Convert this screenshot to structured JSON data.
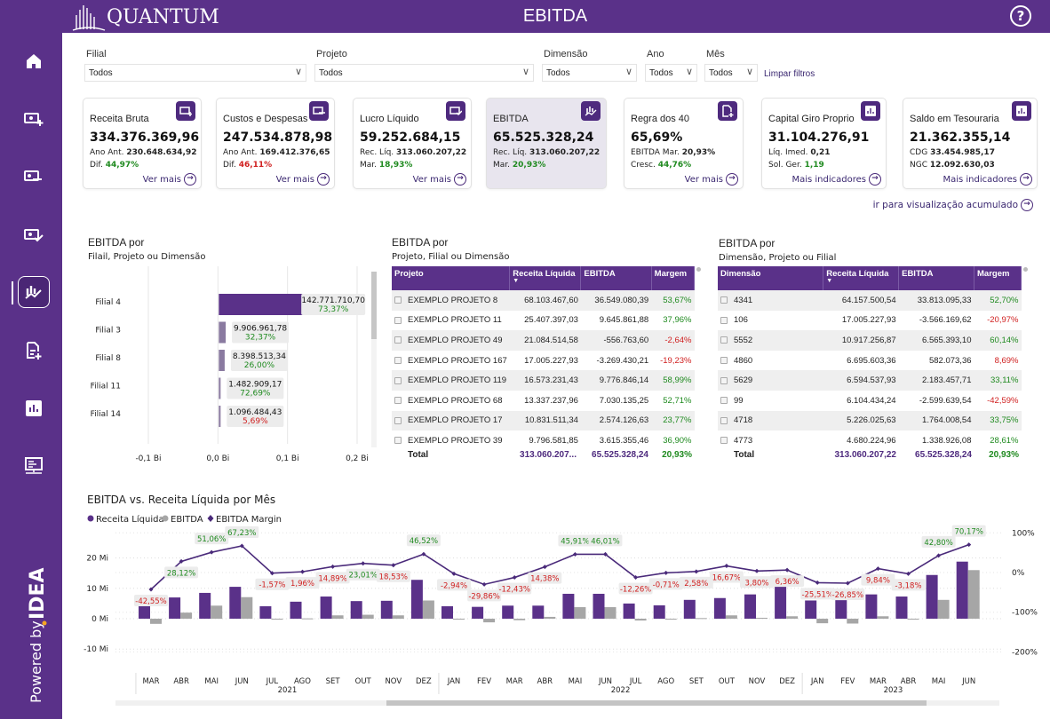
{
  "header": {
    "logo_text": "QUANTUM",
    "title": "EBITDA",
    "help": "?"
  },
  "sidebar": {
    "items": [
      "home",
      "money-plus",
      "money-minus",
      "money-check",
      "ebitda-chart",
      "document-plus",
      "bar-chart",
      "monitor"
    ],
    "active": "ebitda-chart",
    "powered_by": "Powered by",
    "brand": "IDEA"
  },
  "colors": {
    "brand": "#5a3189",
    "positive": "#1f8a1f",
    "negative": "#d02020",
    "ebitda_bar": "#a6a6a6",
    "active_card": "#e8e5ee"
  },
  "filters": [
    {
      "label": "Filial",
      "value": "Todos"
    },
    {
      "label": "Projeto",
      "value": "Todos"
    },
    {
      "label": "Dimensão",
      "value": "Todos"
    },
    {
      "label": "Ano",
      "value": "Todos"
    },
    {
      "label": "Mês",
      "value": "Todos"
    }
  ],
  "clear_filters": "Limpar filtros",
  "cards": [
    {
      "title": "Receita Bruta",
      "value": "334.376.369,96",
      "l1": "Ano Ant.",
      "v1": "230.648.634,92",
      "l2": "Dif.",
      "v2": "44,97%",
      "v2s": "pos",
      "link": "Ver mais",
      "icon": "money-plus-icon"
    },
    {
      "title": "Custos e Despesas",
      "value": "247.534.878,98",
      "l1": "Ano Ant.",
      "v1": "169.412.376,65",
      "l2": "Dif.",
      "v2": "46,11%",
      "v2s": "neg",
      "link": "Ver mais",
      "icon": "money-minus-icon"
    },
    {
      "title": "Lucro Líquido",
      "value": "59.252.684,15",
      "l1": "Rec. Líq.",
      "v1": "313.060.207,22",
      "l2": "Mar.",
      "v2": "18,93%",
      "v2s": "pos",
      "link": "Ver mais",
      "icon": "money-check-icon"
    },
    {
      "title": "EBITDA",
      "value": "65.525.328,24",
      "l1": "Rec. Líq.",
      "v1": "313.060.207,22",
      "l2": "Mar.",
      "v2": "20,93%",
      "v2s": "pos",
      "link": "",
      "icon": "ebitda-chart-icon"
    },
    {
      "title": "Regra dos 40",
      "value": "65,69%",
      "l1": "EBITDA Mar.",
      "v1": "20,93%",
      "l2": "Cresc.",
      "v2": "44,76%",
      "v2s": "pos",
      "link": "Ver mais",
      "icon": "document-plus-icon"
    },
    {
      "title": "Capital Giro Proprio",
      "value": "31.104.276,91",
      "l1": "Líq. Imed.",
      "v1": "0,21",
      "l2": "Sol. Ger.",
      "v2": "1,19",
      "v2s": "pos",
      "link": "Mais indicadores",
      "icon": "bar-chart-icon"
    },
    {
      "title": "Saldo em Tesouraria",
      "value": "21.362.355,14",
      "l1": "CDG",
      "v1": "33.454.985,17",
      "l2": "NGC",
      "v2": "12.092.630,03",
      "v2s": "",
      "link": "Mais indicadores",
      "icon": "bar-chart-icon"
    }
  ],
  "acumulado_link": "ir para visualização acumulado",
  "filial_section": {
    "title": "EBITDA por",
    "subtitle": "Filail, Projeto ou Dimensão"
  },
  "projeto_section": {
    "title": "EBITDA por",
    "subtitle": "Projeto, Filial ou Dimensão",
    "columns": [
      "Projeto",
      "Receita Líquida",
      "EBITDA",
      "Margem"
    ],
    "rows": [
      [
        "EXEMPLO PROJETO 8",
        "68.103.467,60",
        "36.549.080,39",
        "53,67%"
      ],
      [
        "EXEMPLO PROJETO 11",
        "25.407.397,03",
        "9.645.861,88",
        "37,96%"
      ],
      [
        "EXEMPLO PROJETO 49",
        "21.084.514,58",
        "-556.763,60",
        "-2,64%"
      ],
      [
        "EXEMPLO PROJETO 167",
        "17.005.227,93",
        "-3.269.430,21",
        "-19,23%"
      ],
      [
        "EXEMPLO PROJETO 119",
        "16.573.231,43",
        "9.776.846,14",
        "58,99%"
      ],
      [
        "EXEMPLO PROJETO 68",
        "13.337.237,96",
        "7.030.135,25",
        "52,71%"
      ],
      [
        "EXEMPLO PROJETO 17",
        "10.831.511,34",
        "2.574.126,63",
        "23,77%"
      ],
      [
        "EXEMPLO PROJETO 39",
        "9.796.581,85",
        "3.615.355,46",
        "36,90%"
      ]
    ],
    "total": [
      "Total",
      "313.060.207...",
      "65.525.328,24",
      "20,93%"
    ]
  },
  "dimensao_section": {
    "title": "EBITDA por",
    "subtitle": "Dimensão, Projeto ou Filial",
    "columns": [
      "Dimensão",
      "Receita Líquida",
      "EBITDA",
      "Margem"
    ],
    "rows": [
      [
        "4341",
        "64.157.500,54",
        "33.813.095,33",
        "52,70%"
      ],
      [
        "106",
        "17.005.227,93",
        "-3.566.169,62",
        "-20,97%"
      ],
      [
        "5552",
        "10.917.256,87",
        "6.565.393,10",
        "60,14%"
      ],
      [
        "4860",
        "6.695.603,36",
        "582.073,36",
        "8,69%"
      ],
      [
        "5629",
        "6.594.537,93",
        "2.183.457,71",
        "33,11%"
      ],
      [
        "99",
        "6.104.434,24",
        "-2.599.639,54",
        "-42,59%"
      ],
      [
        "4718",
        "5.226.025,63",
        "1.764.008,54",
        "33,75%"
      ],
      [
        "4773",
        "4.680.224,96",
        "1.338.926,08",
        "28,61%"
      ]
    ],
    "total": [
      "Total",
      "313.060.207,22",
      "65.525.328,24",
      "20,93%"
    ]
  },
  "chart_data": [
    {
      "type": "bar",
      "orientation": "horizontal",
      "categories": [
        "Filial 4",
        "Filial 3",
        "Filial 8",
        "Filial 11",
        "Filial 14"
      ],
      "values": [
        142771710.7,
        9906961.78,
        8398513.34,
        1482909.17,
        1096484.43
      ],
      "value_labels": [
        "142.771.710,70",
        "9.906.961,78",
        "8.398.513,34",
        "1.482.909,17",
        "1.096.484,43"
      ],
      "margin_labels": [
        "73,37%",
        "32,37%",
        "26,00%",
        "72,69%",
        "5,69%"
      ],
      "margin_sign": [
        "pos",
        "pos",
        "pos",
        "pos",
        "neg"
      ],
      "xlim": [
        -0.1,
        0.2
      ],
      "xticks": [
        "-0,1 Bi",
        "0,0 Bi",
        "0,1 Bi",
        "0,2 Bi"
      ],
      "grid": true
    },
    {
      "type": "bar+line",
      "title": "EBITDA vs. Receita Líquida por Mês",
      "legend": [
        "Receita Líquida",
        "EBITDA",
        "EBITDA Margin"
      ],
      "legend_position": "top-left",
      "categories": [
        "MAR",
        "ABR",
        "MAI",
        "JUN",
        "JUL",
        "AGO",
        "SET",
        "OUT",
        "NOV",
        "DEZ",
        "JAN",
        "FEV",
        "MAR",
        "ABR",
        "MAI",
        "JUN",
        "JUL",
        "AGO",
        "SET",
        "OUT",
        "NOV",
        "DEZ",
        "JAN",
        "FEV",
        "MAR",
        "ABR",
        "MAI",
        "JUN"
      ],
      "years": [
        {
          "label": "2021",
          "count": 10
        },
        {
          "label": "2022",
          "count": 12
        },
        {
          "label": "2023",
          "count": 6
        }
      ],
      "series": [
        {
          "name": "Receita Líquida",
          "axis": "left",
          "values": [
            4.1,
            7.0,
            8.5,
            10.5,
            4.1,
            5.6,
            7.3,
            5.8,
            5.9,
            12.8,
            4.1,
            3.9,
            4.3,
            4.3,
            8.2,
            8.2,
            5.0,
            4.4,
            6.2,
            6.8,
            8.0,
            12.2,
            6.0,
            6.1,
            8.0,
            7.3,
            14.4,
            18.8
          ]
        },
        {
          "name": "EBITDA",
          "axis": "left",
          "values": [
            -1.7,
            2.0,
            4.3,
            7.1,
            -0.1,
            0.1,
            1.1,
            1.3,
            1.1,
            6.0,
            -0.1,
            -1.2,
            -0.5,
            0.6,
            3.8,
            3.8,
            -0.6,
            -0.1,
            0.2,
            1.1,
            0.3,
            0.8,
            -1.5,
            -1.6,
            0.8,
            -0.2,
            6.2,
            16.0
          ]
        },
        {
          "name": "EBITDA Margin",
          "axis": "right",
          "values": [
            -42.55,
            28.12,
            51.06,
            67.23,
            -1.57,
            1.96,
            14.89,
            23.01,
            18.53,
            46.52,
            -2.94,
            -29.86,
            -12.43,
            14.38,
            45.91,
            46.01,
            -12.26,
            -0.71,
            2.58,
            16.67,
            3.8,
            6.36,
            -25.51,
            -26.85,
            9.84,
            -3.18,
            42.8,
            70.17
          ],
          "labels": [
            "-42,55%",
            "28,12%",
            "51,06%",
            "67,23%",
            "-1,57%",
            "1,96%",
            "14,89%",
            "23,01%",
            "18,53%",
            "46,52%",
            "-2,94%",
            "-29,86%",
            "-12,43%",
            "14,38%",
            "45,91%",
            "46,01%",
            "-12,26%",
            "-0,71%",
            "2,58%",
            "16,67%",
            "3,80%",
            "6,36%",
            "-25,51%",
            "-26,85%",
            "9,84%",
            "-3,18%",
            "42,80%",
            "70,17%"
          ]
        }
      ],
      "ylim_left": [
        -10,
        20
      ],
      "yticks_left": [
        "20 Mi",
        "10 Mi",
        "0 Mi",
        "-10 Mi"
      ],
      "ylim_right": [
        -200,
        100
      ],
      "yticks_right": [
        "100%",
        "0%",
        "-100%",
        "-200%"
      ],
      "grid": true
    }
  ]
}
